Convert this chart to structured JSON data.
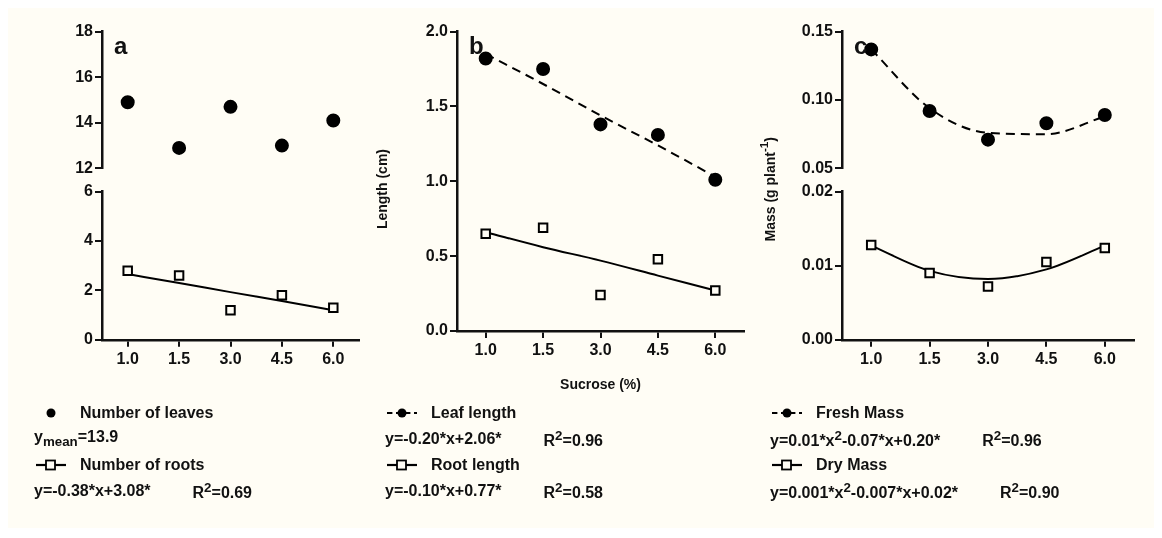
{
  "chart_data": [
    {
      "type": "scatter",
      "title": "a",
      "categories": [
        "1.0",
        "1.5",
        "3.0",
        "4.5",
        "6.0"
      ],
      "ylim": [
        12,
        18
      ],
      "yticks": [
        12,
        14,
        16,
        18
      ],
      "tick_labels": "y",
      "grid": false,
      "legend": "bottom",
      "annotations": [
        "y$_{mean}$=13.9"
      ],
      "series": [
        {
          "name": "Number of leaves",
          "color": "#000000",
          "marker": "circle",
          "values": [
            14.9,
            12.9,
            14.7,
            13.0,
            14.1
          ]
        }
      ]
    },
    {
      "type": "scatter",
      "categories": [
        "1.0",
        "1.5",
        "3.0",
        "4.5",
        "6.0"
      ],
      "ylim": [
        0,
        6
      ],
      "yticks": [
        0,
        2,
        4,
        6
      ],
      "grid": false,
      "legend": "bottom",
      "annotations": [
        "y=-0.38*x+3.08*",
        "R$^{2}$=0.69"
      ],
      "series": [
        {
          "name": "Number of roots",
          "color": "#000000",
          "marker": "square",
          "values": [
            2.8,
            2.6,
            1.2,
            1.8,
            1.3
          ]
        },
        {
          "type": "line",
          "color": "#000000",
          "marker": "none",
          "line_style": "solid",
          "values": [
            2.66,
            2.3,
            1.93,
            1.57,
            1.2
          ]
        }
      ]
    },
    {
      "type": "scatter",
      "title": "b",
      "xlabel": "Sucrose (%)",
      "ylabel": "Length (cm)",
      "categories": [
        "1.0",
        "1.5",
        "3.0",
        "4.5",
        "6.0"
      ],
      "ylim": [
        0,
        2
      ],
      "yticks": [
        {
          "value": 0,
          "label": "0.0"
        },
        {
          "value": 0.5,
          "label": "0.5"
        },
        {
          "value": 1,
          "label": "1.0"
        },
        {
          "value": 1.5,
          "label": "1.5"
        },
        {
          "value": 2,
          "label": "2.0"
        }
      ],
      "grid": false,
      "legend": "bottom",
      "annotations": [
        "y=-0.20*x+2.06*",
        "R$^{2}$=0.96",
        "y=-0.10*x+0.77*",
        "R$^{2}$=0.58"
      ],
      "series": [
        {
          "name": "Leaf length",
          "color": "#000000",
          "marker": "circle",
          "values": [
            1.82,
            1.75,
            1.38,
            1.31,
            1.01
          ]
        },
        {
          "type": "line",
          "color": "#000000",
          "marker": "none",
          "line_style": "dashed",
          "values": [
            1.85,
            1.65,
            1.44,
            1.24,
            1.03
          ]
        },
        {
          "name": "Root length",
          "color": "#000000",
          "marker": "square",
          "values": [
            0.65,
            0.69,
            0.24,
            0.48,
            0.27
          ]
        },
        {
          "type": "line",
          "color": "#000000",
          "marker": "none",
          "line_style": "solid",
          "values": [
            0.66,
            0.56,
            0.47,
            0.37,
            0.27
          ]
        }
      ]
    },
    {
      "type": "scatter",
      "title": "c",
      "ylabel": "Mass (g plant$^{-1}$)",
      "categories": [
        "1.0",
        "1.5",
        "3.0",
        "4.5",
        "6.0"
      ],
      "ylim": [
        0.05,
        0.15
      ],
      "yticks": [
        {
          "value": 0.05,
          "label": "0.05"
        },
        {
          "value": 0.1,
          "label": "0.10"
        },
        {
          "value": 0.15,
          "label": "0.15"
        }
      ],
      "tick_labels": "y",
      "grid": false,
      "legend": "bottom",
      "annotations": [
        "y=0.01*x$^{2}$-0.07*x+0.20*",
        "R$^{2}$=0.96"
      ],
      "series": [
        {
          "name": "Fresh Mass",
          "color": "#000000",
          "marker": "circle",
          "values": [
            0.137,
            0.092,
            0.071,
            0.083,
            0.089
          ]
        },
        {
          "type": "line",
          "color": "#000000",
          "marker": "none",
          "line_style": "dashed",
          "values": [
            0.137,
            0.094,
            0.076,
            0.075,
            0.088
          ]
        }
      ]
    },
    {
      "type": "scatter",
      "categories": [
        "1.0",
        "1.5",
        "3.0",
        "4.5",
        "6.0"
      ],
      "ylim": [
        0,
        0.02
      ],
      "yticks": [
        {
          "value": 0,
          "label": "0.00"
        },
        {
          "value": 0.01,
          "label": "0.01"
        },
        {
          "value": 0.02,
          "label": "0.02"
        }
      ],
      "grid": false,
      "legend": "bottom",
      "annotations": [
        "y=0.001*x$^{2}$-0.007*x+0.02*",
        "R$^{2}$=0.90"
      ],
      "series": [
        {
          "name": "Dry Mass",
          "color": "#000000",
          "marker": "square",
          "values": [
            0.0128,
            0.009,
            0.0072,
            0.0105,
            0.0124
          ]
        },
        {
          "type": "line",
          "color": "#000000",
          "marker": "none",
          "line_style": "solid",
          "values": [
            0.0127,
            0.0093,
            0.0082,
            0.0095,
            0.0127
          ]
        }
      ]
    }
  ]
}
